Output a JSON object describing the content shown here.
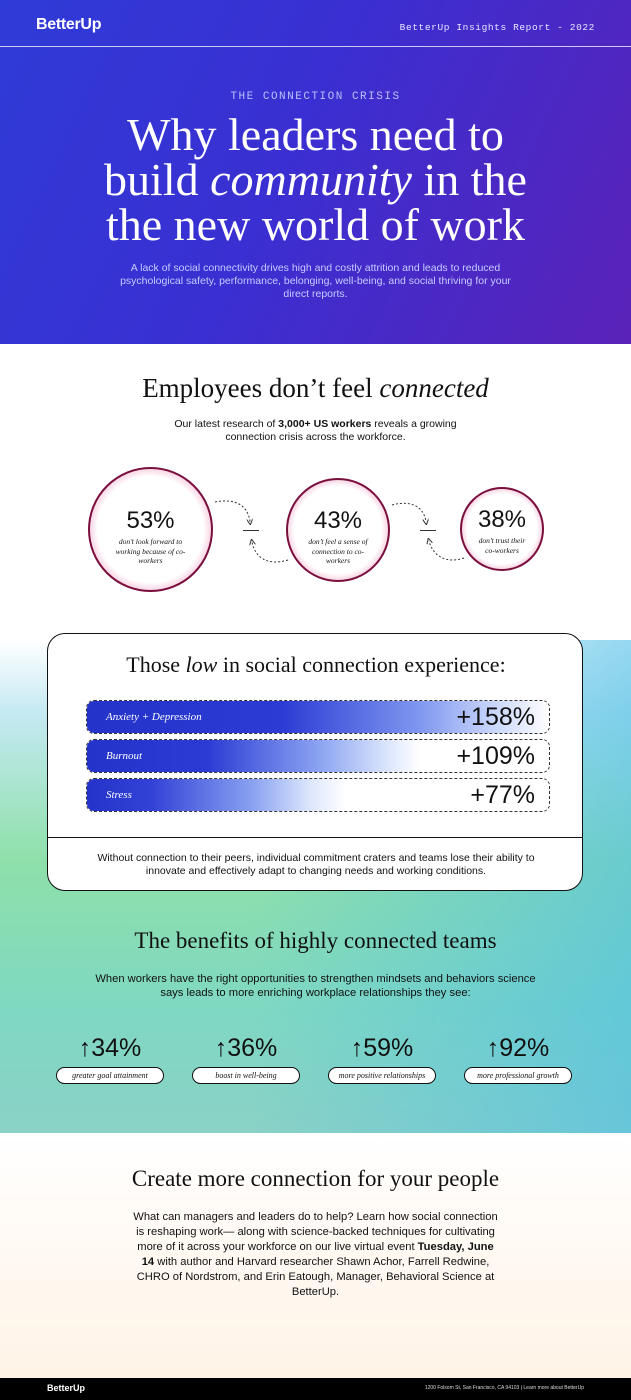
{
  "header": {
    "logo": "BetterUp",
    "report": "BetterUp Insights Report - 2022"
  },
  "hero": {
    "eyebrow": "THE CONNECTION CRISIS",
    "title_a": "Why leaders need to",
    "title_b1": "build ",
    "title_b_em": "community",
    "title_b2": " in the",
    "title_c": "the new world of work",
    "subtitle": "A lack of social connectivity drives high and costly attrition and leads to reduced psychological safety, performance, belonging, well-being, and social thriving for your direct reports."
  },
  "connected": {
    "title_a": "Employees don’t feel ",
    "title_em": "connected",
    "sub_a": "Our latest research of ",
    "sub_strong": "3,000+ US workers",
    "sub_b": " reveals a growing connection crisis across the workforce.",
    "stats": [
      {
        "pct": "53%",
        "caption": "don’t look forward to working because of co-workers"
      },
      {
        "pct": "43%",
        "caption": "don’t feel a sense of connection to co-workers"
      },
      {
        "pct": "38%",
        "caption": "don’t trust their co-workers"
      }
    ]
  },
  "low": {
    "title_a": "Those ",
    "title_em": "low",
    "title_b": " in social connection experience:",
    "bars": [
      {
        "label": "Anxiety + Depression",
        "value": "+158%"
      },
      {
        "label": "Burnout",
        "value": "+109%"
      },
      {
        "label": "Stress",
        "value": "+77%"
      }
    ],
    "footer": "Without connection to their peers, individual commitment craters and teams lose their ability to innovate and effectively adapt to changing needs and working conditions."
  },
  "benefits": {
    "title": "The benefits of highly connected teams",
    "subtitle": "When workers have the right opportunities to strengthen mindsets and behaviors science says leads to more enriching workplace relationships they see:",
    "stats": [
      {
        "num": "↑34%",
        "label": "greater goal attainment"
      },
      {
        "num": "↑36%",
        "label": "boost in well-being"
      },
      {
        "num": "↑59%",
        "label": "more positive relationships"
      },
      {
        "num": "↑92%",
        "label": "more professional growth"
      }
    ]
  },
  "create": {
    "title": "Create more connection for your people",
    "body_a": "What can managers and leaders do to help? Learn how social connection is reshaping work— along with science-backed techniques for cultivating more of it across your workforce on our live virtual event ",
    "body_strong": "Tuesday, June 14",
    "body_b": " with author and Harvard researcher Shawn Achor, Farrell Redwine, CHRO of Nordstrom, and Erin Eatough, Manager, Behavioral Science at BetterUp."
  },
  "footer": {
    "logo": "BetterUp",
    "address": "1200 Folsom St, San Francisco, CA 94103  |  Learn more about BetterUp"
  }
}
